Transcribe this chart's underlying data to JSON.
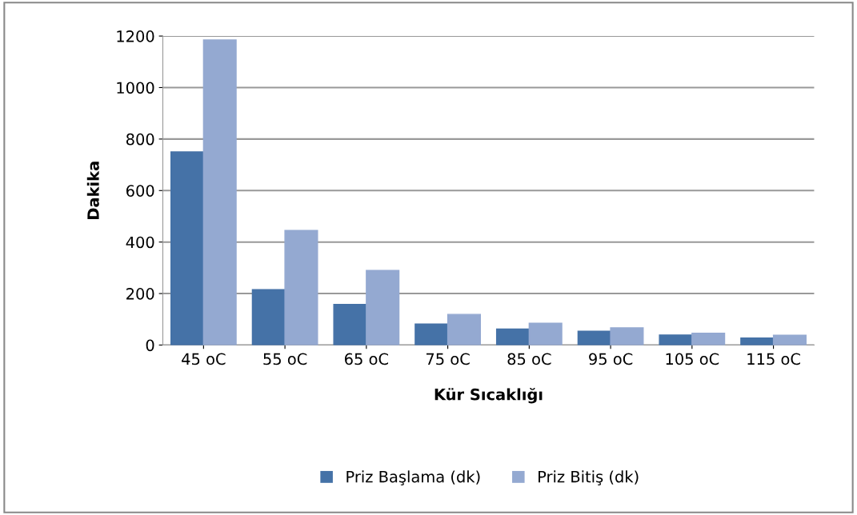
{
  "chart_data": {
    "type": "bar",
    "xlabel": "Kür Sıcaklığı",
    "ylabel": "Dakika",
    "categories": [
      "45 oC",
      "55 oC",
      "65 oC",
      "75 oC",
      "85 oC",
      "95 oC",
      "105 oC",
      "115 oC"
    ],
    "series": [
      {
        "name": "Priz Başlama (dk)",
        "color": "#4572a7",
        "values": [
          750,
          215,
          158,
          82,
          62,
          54,
          39,
          27
        ]
      },
      {
        "name": "Priz Bitiş (dk)",
        "color": "#94a9d1",
        "values": [
          1185,
          445,
          290,
          119,
          85,
          67,
          46,
          38
        ]
      }
    ],
    "ylim": [
      0,
      1200
    ],
    "yticks": [
      0,
      200,
      400,
      600,
      800,
      1000,
      1200
    ],
    "grid": "y",
    "legend": "bottom"
  }
}
